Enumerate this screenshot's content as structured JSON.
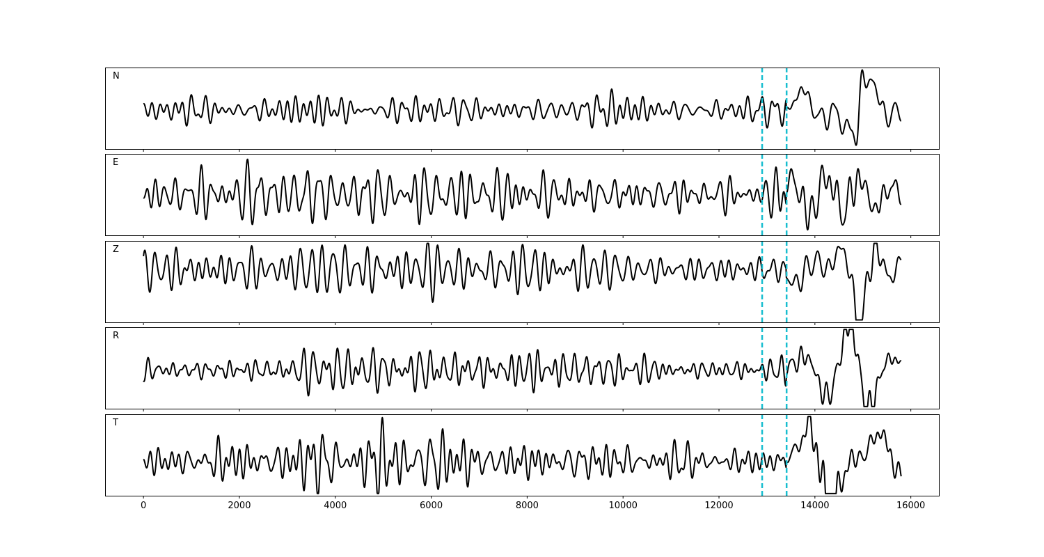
{
  "chart_data": {
    "type": "line",
    "title": "",
    "xlabel": "",
    "ylabel": "",
    "x_range": [
      -800,
      16600
    ],
    "x_ticks": [
      0,
      2000,
      4000,
      6000,
      8000,
      10000,
      12000,
      14000,
      16000
    ],
    "x_tick_labels": [
      "0",
      "2000",
      "4000",
      "6000",
      "8000",
      "10000",
      "12000",
      "14000",
      "16000"
    ],
    "n_samples": 15800,
    "grid": false,
    "legend": "none",
    "colors": {
      "trace": "#000000",
      "marker": "#17becf",
      "frame": "#000000",
      "background": "#ffffff"
    },
    "markers": [
      {
        "x": 12900,
        "style": "dashed"
      },
      {
        "x": 13410,
        "style": "dashed"
      }
    ],
    "panels": [
      {
        "label": "N",
        "y_range": [
          -1.0,
          1.1
        ],
        "seed": 11,
        "envelope": [
          [
            0,
            0.3
          ],
          [
            2800,
            0.35
          ],
          [
            5600,
            0.45
          ],
          [
            8200,
            0.2
          ],
          [
            9300,
            0.5
          ],
          [
            11000,
            0.2
          ],
          [
            12900,
            0.3
          ],
          [
            13500,
            0.4
          ],
          [
            14600,
            0.55
          ],
          [
            14900,
            1.0
          ],
          [
            15300,
            0.6
          ],
          [
            15800,
            0.3
          ]
        ]
      },
      {
        "label": "E",
        "y_range": [
          -1.0,
          1.0
        ],
        "seed": 23,
        "envelope": [
          [
            0,
            0.3
          ],
          [
            2300,
            0.55
          ],
          [
            5000,
            0.45
          ],
          [
            8000,
            0.45
          ],
          [
            11000,
            0.45
          ],
          [
            12900,
            0.3
          ],
          [
            13600,
            0.75
          ],
          [
            14200,
            0.8
          ],
          [
            14800,
            0.85
          ],
          [
            15300,
            0.7
          ],
          [
            15800,
            0.4
          ]
        ]
      },
      {
        "label": "Z",
        "y_range": [
          -1.1,
          0.6
        ],
        "seed": 37,
        "envelope": [
          [
            0,
            0.3
          ],
          [
            600,
            0.45
          ],
          [
            2500,
            0.45
          ],
          [
            5200,
            0.45
          ],
          [
            6500,
            0.55
          ],
          [
            9000,
            0.4
          ],
          [
            11500,
            0.3
          ],
          [
            12900,
            0.3
          ],
          [
            13600,
            0.4
          ],
          [
            14500,
            0.55
          ],
          [
            14900,
            1.0
          ],
          [
            15300,
            0.6
          ],
          [
            15800,
            0.3
          ]
        ]
      },
      {
        "label": "R",
        "y_range": [
          -0.9,
          1.0
        ],
        "seed": 51,
        "envelope": [
          [
            0,
            0.2
          ],
          [
            2900,
            0.3
          ],
          [
            5700,
            0.45
          ],
          [
            9200,
            0.4
          ],
          [
            11500,
            0.2
          ],
          [
            12900,
            0.25
          ],
          [
            13600,
            0.45
          ],
          [
            14500,
            0.5
          ],
          [
            14900,
            0.95
          ],
          [
            15300,
            0.6
          ],
          [
            15800,
            0.35
          ]
        ]
      },
      {
        "label": "T",
        "y_range": [
          -0.8,
          1.1
        ],
        "seed": 67,
        "envelope": [
          [
            0,
            0.25
          ],
          [
            2300,
            0.45
          ],
          [
            5200,
            0.6
          ],
          [
            8000,
            0.35
          ],
          [
            11000,
            0.3
          ],
          [
            12900,
            0.25
          ],
          [
            13600,
            0.45
          ],
          [
            14100,
            1.0
          ],
          [
            14700,
            0.6
          ],
          [
            15300,
            0.6
          ],
          [
            15800,
            0.3
          ]
        ]
      }
    ]
  }
}
